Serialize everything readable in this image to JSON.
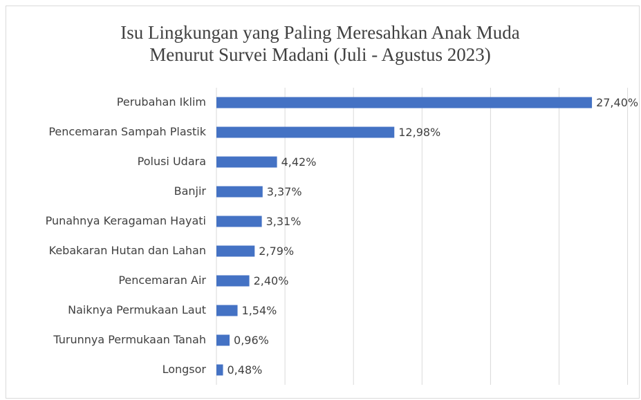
{
  "chart_data": {
    "type": "bar",
    "orientation": "horizontal",
    "title": [
      "Isu Lingkungan yang Paling Meresahkan Anak Muda",
      "Menurut Survei Madani (Juli - Agustus 2023)"
    ],
    "categories": [
      "Perubahan Iklim",
      "Pencemaran Sampah Plastik",
      "Polusi Udara",
      "Banjir",
      "Punahnya Keragaman Hayati",
      "Kebakaran Hutan dan Lahan",
      "Pencemaran Air",
      "Naiknya Permukaan Laut",
      "Turunnya Permukaan Tanah",
      "Longsor"
    ],
    "values": [
      27.4,
      12.98,
      4.42,
      3.37,
      3.31,
      2.79,
      2.4,
      1.54,
      0.96,
      0.48
    ],
    "value_labels": [
      "27,40%",
      "12,98%",
      "4,42%",
      "3,37%",
      "3,31%",
      "2,79%",
      "2,40%",
      "1,54%",
      "0,96%",
      "0,48%"
    ],
    "color": "#4472c4",
    "xlim": [
      0,
      30
    ],
    "xticks": [
      0,
      5,
      10,
      15,
      20,
      25,
      30
    ],
    "grid": true
  }
}
